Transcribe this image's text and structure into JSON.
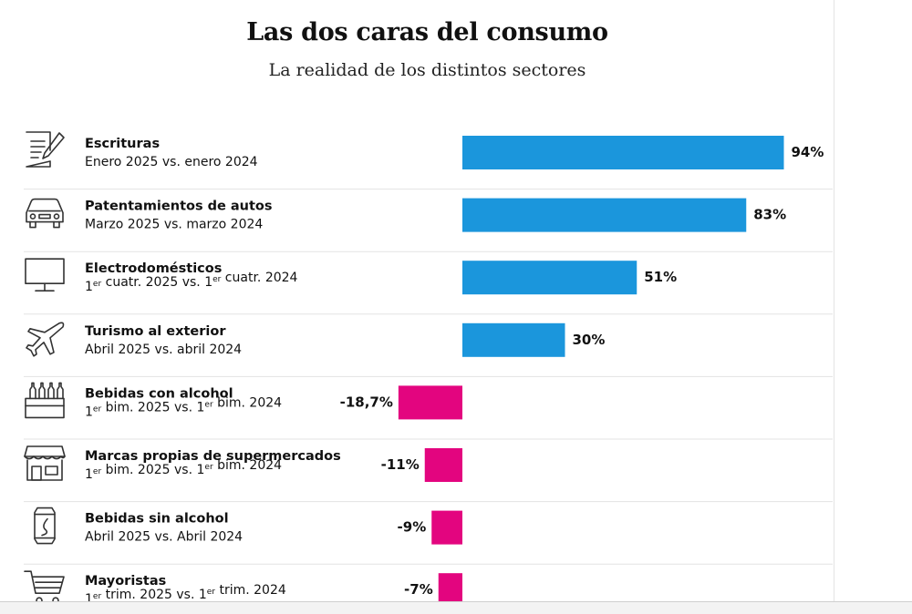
{
  "title": "Las dos caras del consumo",
  "subtitle": "La realidad de los distintos sectores",
  "colors": {
    "positive": "#1b96dc",
    "negative": "#e3057f"
  },
  "chart_data": {
    "type": "bar",
    "orientation": "horizontal",
    "title": "Las dos caras del consumo",
    "subtitle": "La realidad de los distintos sectores",
    "categories": [
      "Escrituras",
      "Patentamientos de autos",
      "Electrodomésticos",
      "Turismo al exterior",
      "Bebidas con alcohol",
      "Marcas propias de supermercados",
      "Bebidas sin alcohol",
      "Mayoristas"
    ],
    "values": [
      94,
      83,
      51,
      30,
      -18.7,
      -11,
      -9,
      -7
    ],
    "unit": "%",
    "rows": [
      {
        "icon": "document-pen-icon",
        "title": "Escrituras",
        "period": [
          {
            "t": "Enero 2025 vs. enero 2024"
          }
        ],
        "value": 94,
        "label": "94%"
      },
      {
        "icon": "car-icon",
        "title": "Patentamientos de autos",
        "period": [
          {
            "t": "Marzo 2025 vs. marzo 2024"
          }
        ],
        "value": 83,
        "label": "83%"
      },
      {
        "icon": "monitor-icon",
        "title": "Electrodomésticos",
        "period": [
          {
            "t": "1"
          },
          {
            "t": "er",
            "sup": true
          },
          {
            "t": " cuatr. 2025 vs. 1"
          },
          {
            "t": "er",
            "sup": true
          },
          {
            "t": " cuatr. 2024"
          }
        ],
        "value": 51,
        "label": "51%"
      },
      {
        "icon": "airplane-icon",
        "title": "Turismo al exterior",
        "period": [
          {
            "t": "Abril 2025 vs. abril 2024"
          }
        ],
        "value": 30,
        "label": "30%"
      },
      {
        "icon": "bottle-crate-icon",
        "title": "Bebidas con alcohol",
        "period": [
          {
            "t": "1"
          },
          {
            "t": "er",
            "sup": true
          },
          {
            "t": " bim. 2025 vs. 1"
          },
          {
            "t": "er",
            "sup": true
          },
          {
            "t": " bim. 2024"
          }
        ],
        "value": -18.7,
        "label": "-18,7%"
      },
      {
        "icon": "store-icon",
        "title": "Marcas propias de supermercados",
        "period": [
          {
            "t": "1"
          },
          {
            "t": "er",
            "sup": true
          },
          {
            "t": " bim. 2025 vs. 1"
          },
          {
            "t": "er",
            "sup": true
          },
          {
            "t": " bim. 2024"
          }
        ],
        "value": -11,
        "label": "-11%"
      },
      {
        "icon": "can-icon",
        "title": "Bebidas sin alcohol",
        "period": [
          {
            "t": "Abril 2025 vs. Abril 2024"
          }
        ],
        "value": -9,
        "label": "-9%"
      },
      {
        "icon": "shopping-cart-icon",
        "title": "Mayoristas",
        "period": [
          {
            "t": "1"
          },
          {
            "t": "er",
            "sup": true
          },
          {
            "t": " trim. 2025 vs. 1"
          },
          {
            "t": "er",
            "sup": true
          },
          {
            "t": " trim. 2024"
          }
        ],
        "value": -7,
        "label": "-7%"
      }
    ],
    "grid": false,
    "legend": "none"
  }
}
